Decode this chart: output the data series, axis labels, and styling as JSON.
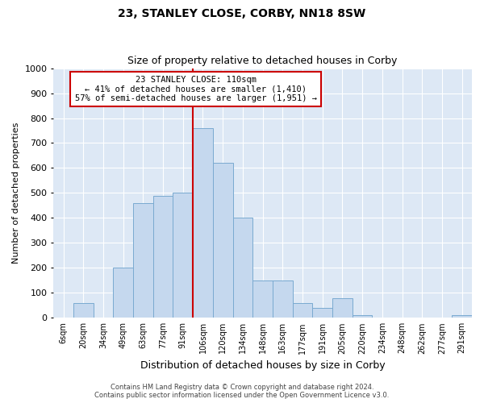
{
  "title": "23, STANLEY CLOSE, CORBY, NN18 8SW",
  "subtitle": "Size of property relative to detached houses in Corby",
  "xlabel": "Distribution of detached houses by size in Corby",
  "ylabel": "Number of detached properties",
  "categories": [
    "6sqm",
    "20sqm",
    "34sqm",
    "49sqm",
    "63sqm",
    "77sqm",
    "91sqm",
    "106sqm",
    "120sqm",
    "134sqm",
    "148sqm",
    "163sqm",
    "177sqm",
    "191sqm",
    "205sqm",
    "220sqm",
    "234sqm",
    "248sqm",
    "262sqm",
    "277sqm",
    "291sqm"
  ],
  "values": [
    0,
    60,
    0,
    200,
    460,
    490,
    500,
    760,
    620,
    400,
    150,
    150,
    60,
    40,
    80,
    10,
    0,
    0,
    0,
    0,
    10
  ],
  "bar_color": "#c5d8ee",
  "bar_edge_color": "#7aaad0",
  "background_color": "#dde8f5",
  "vline_color": "#cc0000",
  "annotation_text": "23 STANLEY CLOSE: 110sqm\n← 41% of detached houses are smaller (1,410)\n57% of semi-detached houses are larger (1,951) →",
  "annotation_box_color": "#ffffff",
  "annotation_box_edge": "#cc0000",
  "ylim": [
    0,
    1000
  ],
  "yticks": [
    0,
    100,
    200,
    300,
    400,
    500,
    600,
    700,
    800,
    900,
    1000
  ],
  "footer1": "Contains HM Land Registry data © Crown copyright and database right 2024.",
  "footer2": "Contains public sector information licensed under the Open Government Licence v3.0."
}
